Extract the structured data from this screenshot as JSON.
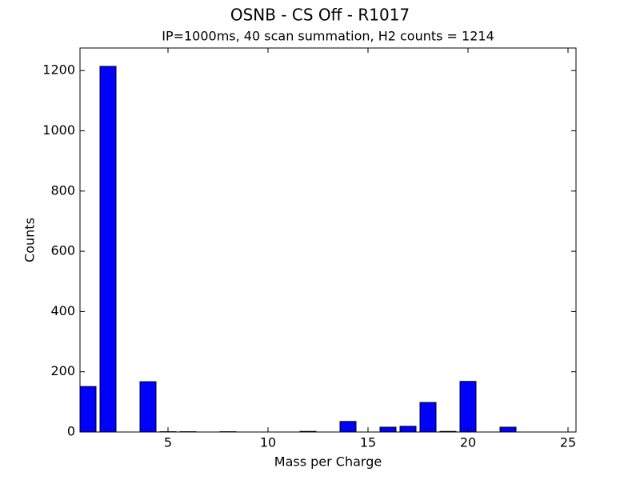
{
  "chart_data": {
    "type": "bar",
    "title": "OSNB - CS Off - R1017",
    "subtitle": "IP=1000ms, 40 scan summation, H2 counts = 1214",
    "x_label": "Mass per Charge",
    "y_label": "Counts",
    "x": [
      1,
      2,
      4,
      5,
      6,
      8,
      12,
      14,
      16,
      17,
      18,
      19,
      20,
      22
    ],
    "values": [
      151,
      1214,
      167,
      1,
      1,
      1,
      2,
      35,
      16,
      19,
      98,
      2,
      168,
      16
    ],
    "bar_width": 0.8,
    "color": "#0000ff",
    "xlim": [
      0.6,
      25.4
    ],
    "xticks": [
      5,
      10,
      15,
      20,
      25
    ],
    "ylim": [
      0,
      1275
    ],
    "yticks": [
      0,
      200,
      400,
      600,
      800,
      1000,
      1200
    ]
  }
}
